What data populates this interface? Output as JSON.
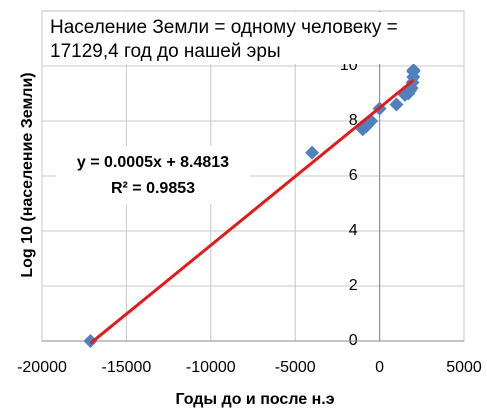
{
  "chart_data": {
    "type": "scatter",
    "title_lines": [
      "Население Земли = одному человеку =",
      "17129,4 год до нашей эры"
    ],
    "x_label": "Годы до и после н.э",
    "y_label": "Log 10 (население Земли)",
    "x": [
      -17129,
      -4000,
      -1000,
      -800,
      -500,
      0,
      1000,
      1500,
      1700,
      1800,
      1900,
      1950,
      2000,
      2000,
      2010
    ],
    "series": [
      {
        "name": "Log 10 (население Земли)",
        "color": "#4f81bd",
        "values": [
          0,
          6.85,
          7.7,
          7.8,
          8.0,
          8.45,
          8.6,
          8.95,
          9.0,
          9.1,
          9.2,
          9.4,
          9.6,
          9.8,
          9.85
        ]
      }
    ],
    "trendline": {
      "slope": 0.0005,
      "intercept": 8.4813,
      "color": "#e31a1c",
      "equation": "y = 0.0005x + 8.4813",
      "r2": "R² = 0.9853"
    },
    "xlim": [
      -20000,
      5000
    ],
    "xticks": [
      -20000,
      -15000,
      -10000,
      -5000,
      0,
      5000
    ],
    "ylim": [
      0,
      12
    ],
    "yticks": [
      0,
      2,
      4,
      6,
      8,
      10
    ],
    "grid": true
  }
}
